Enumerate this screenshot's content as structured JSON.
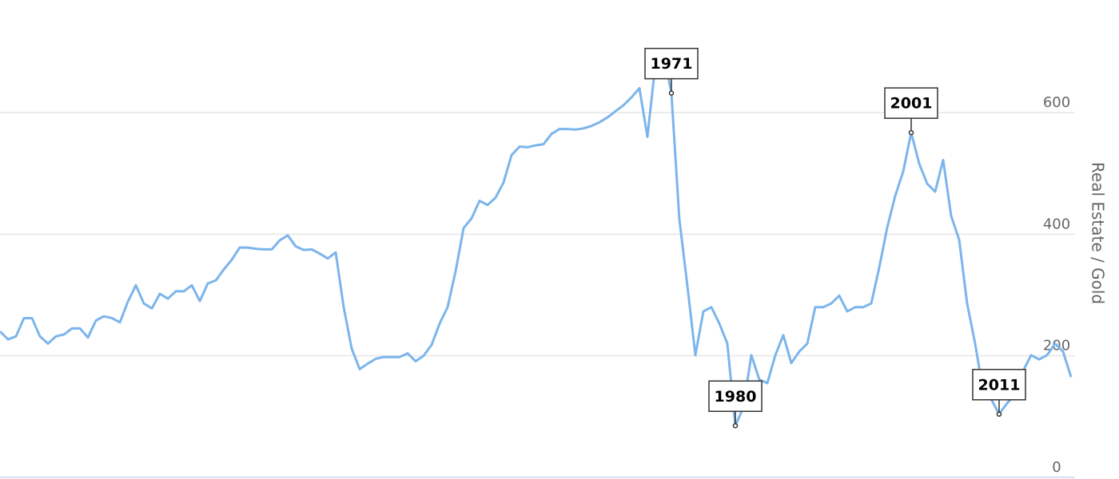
{
  "chart_data": {
    "type": "line",
    "y_axis_title": "Real Estate / Gold",
    "ylim": [
      0,
      600
    ],
    "yticks": [
      0,
      200,
      400,
      600
    ],
    "grid": true,
    "y_axis_side": "right",
    "series": [
      {
        "color": "#7cb5ec",
        "values": [
          240,
          227,
          232,
          262,
          262,
          232,
          220,
          232,
          235,
          245,
          245,
          230,
          258,
          265,
          262,
          255,
          289,
          316,
          286,
          278,
          302,
          294,
          306,
          306,
          316,
          290,
          319,
          324,
          342,
          358,
          378,
          378,
          376,
          375,
          375,
          390,
          398,
          380,
          374,
          375,
          368,
          360,
          370,
          280,
          212,
          178,
          187,
          195,
          198,
          198,
          198,
          204,
          191,
          200,
          218,
          253,
          280,
          339,
          410,
          426,
          455,
          448,
          460,
          485,
          530,
          544,
          543,
          546,
          548,
          565,
          573,
          573,
          572,
          574,
          578,
          584,
          592,
          602,
          612,
          625,
          640,
          560,
          680,
          700,
          632,
          424,
          315,
          201,
          273,
          280,
          253,
          220,
          85,
          115,
          201,
          161,
          155,
          201,
          234,
          188,
          207,
          220,
          280,
          280,
          286,
          299,
          273,
          280,
          280,
          286,
          345,
          411,
          463,
          503,
          567,
          516,
          483,
          470,
          522,
          430,
          391,
          286,
          220,
          142,
          129,
          104,
          122,
          136,
          175,
          201,
          194,
          201,
          220,
          207,
          165
        ]
      }
    ],
    "annotations": [
      {
        "label": "1971",
        "index": 84
      },
      {
        "label": "1980",
        "index": 92
      },
      {
        "label": "2001",
        "index": 114
      },
      {
        "label": "2011",
        "index": 125
      }
    ]
  }
}
